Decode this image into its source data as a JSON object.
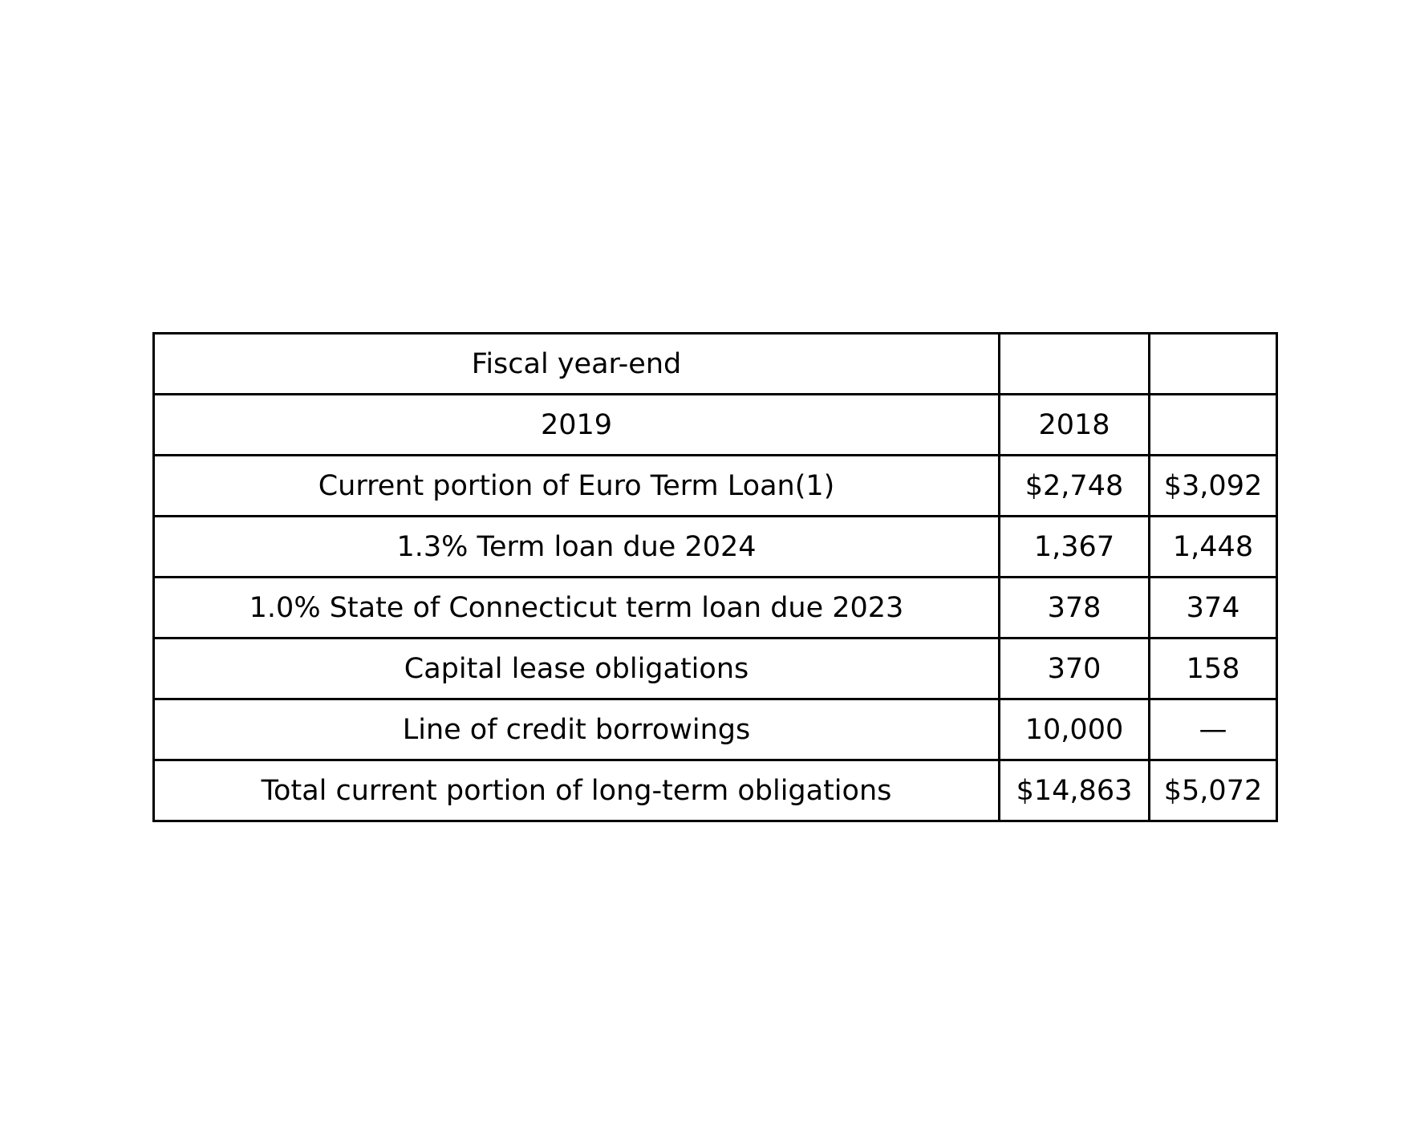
{
  "chart_data": {
    "type": "table",
    "rows": [
      [
        "Fiscal year-end",
        "",
        ""
      ],
      [
        "2019",
        "2018",
        ""
      ],
      [
        "Current portion of Euro Term Loan(1)",
        "$2,748",
        "$3,092"
      ],
      [
        "1.3% Term loan due 2024",
        "1,367",
        "1,448"
      ],
      [
        "1.0% State of Connecticut term loan due 2023",
        "378",
        "374"
      ],
      [
        "Capital lease obligations",
        "370",
        "158"
      ],
      [
        "Line of credit borrowings",
        "10,000",
        "—"
      ],
      [
        "Total current portion of long-term obligations",
        "$14,863",
        "$5,072"
      ]
    ]
  },
  "colors": {
    "border": "#000000",
    "text": "#000000",
    "background": "#ffffff"
  }
}
